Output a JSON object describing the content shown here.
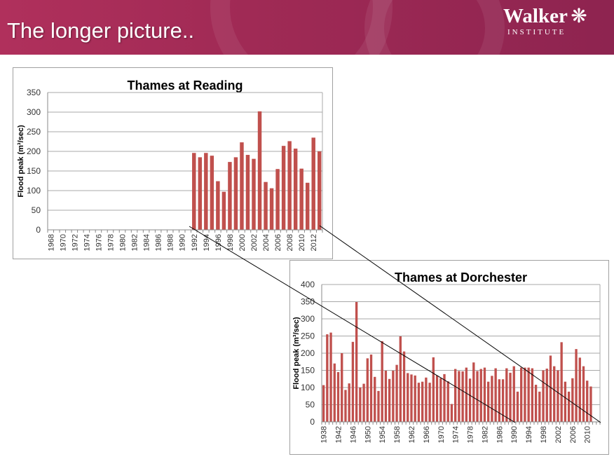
{
  "slide": {
    "title": "The longer picture..",
    "logo_name": "Walker",
    "logo_sub": "INSTITUTE"
  },
  "colors": {
    "header": "#a02a55",
    "bar": "#c0504d"
  },
  "chart_data": [
    {
      "type": "bar",
      "title": "Thames at Reading",
      "ylabel": "Flood peak (m³/sec)",
      "ylim": [
        0,
        350
      ],
      "yticks": [
        0,
        50,
        100,
        150,
        200,
        250,
        300,
        350
      ],
      "grid": true,
      "categories_range": [
        1968,
        2013
      ],
      "tick_labels": [
        "1968",
        "1970",
        "1972",
        "1974",
        "1976",
        "1978",
        "1980",
        "1982",
        "1984",
        "1986",
        "1988",
        "1990",
        "1992",
        "1994",
        "1996",
        "1998",
        "2000",
        "2002",
        "2004",
        "2006",
        "2008",
        "2010",
        "2012"
      ],
      "x": [
        1992,
        1993,
        1994,
        1995,
        1996,
        1997,
        1998,
        1999,
        2000,
        2001,
        2002,
        2003,
        2004,
        2005,
        2006,
        2007,
        2008,
        2009,
        2010,
        2011,
        2012,
        2013
      ],
      "values": [
        196,
        185,
        196,
        189,
        124,
        97,
        173,
        185,
        223,
        191,
        181,
        302,
        122,
        106,
        155,
        214,
        226,
        207,
        156,
        120,
        235,
        200
      ]
    },
    {
      "type": "bar",
      "title": "Thames at Dorchester",
      "ylabel": "Flood peak (m³/sec)",
      "ylim": [
        0,
        400
      ],
      "yticks": [
        0,
        50,
        100,
        150,
        200,
        250,
        300,
        350,
        400
      ],
      "grid": true,
      "categories_range": [
        1938,
        2013
      ],
      "tick_labels": [
        "1938",
        "1942",
        "1946",
        "1950",
        "1954",
        "1958",
        "1962",
        "1966",
        "1970",
        "1974",
        "1978",
        "1982",
        "1986",
        "1990",
        "1994",
        "1998",
        "2002",
        "2006",
        "2010"
      ],
      "x": [
        1938,
        1939,
        1940,
        1941,
        1942,
        1943,
        1944,
        1945,
        1946,
        1947,
        1948,
        1949,
        1950,
        1951,
        1952,
        1953,
        1954,
        1955,
        1956,
        1957,
        1958,
        1959,
        1960,
        1961,
        1962,
        1963,
        1964,
        1965,
        1966,
        1967,
        1968,
        1969,
        1970,
        1971,
        1972,
        1973,
        1974,
        1975,
        1976,
        1977,
        1978,
        1979,
        1980,
        1981,
        1982,
        1983,
        1984,
        1985,
        1986,
        1987,
        1988,
        1989,
        1990,
        1991,
        1992,
        1993,
        1994,
        1995,
        1996,
        1997,
        1998,
        1999,
        2000,
        2001,
        2002,
        2003,
        2004,
        2005,
        2006,
        2007,
        2008,
        2009,
        2010,
        2011
      ],
      "values": [
        107,
        255,
        260,
        170,
        145,
        200,
        93,
        112,
        233,
        349,
        100,
        111,
        185,
        196,
        131,
        90,
        235,
        149,
        125,
        149,
        166,
        249,
        205,
        142,
        138,
        135,
        114,
        117,
        129,
        114,
        188,
        135,
        127,
        139,
        118,
        52,
        154,
        148,
        147,
        158,
        126,
        173,
        148,
        154,
        158,
        117,
        134,
        156,
        124,
        124,
        156,
        143,
        162,
        88,
        158,
        158,
        158,
        156,
        108,
        88,
        150,
        155,
        193,
        162,
        150,
        232,
        117,
        88,
        127,
        212,
        187,
        162,
        120,
        103
      ]
    }
  ]
}
